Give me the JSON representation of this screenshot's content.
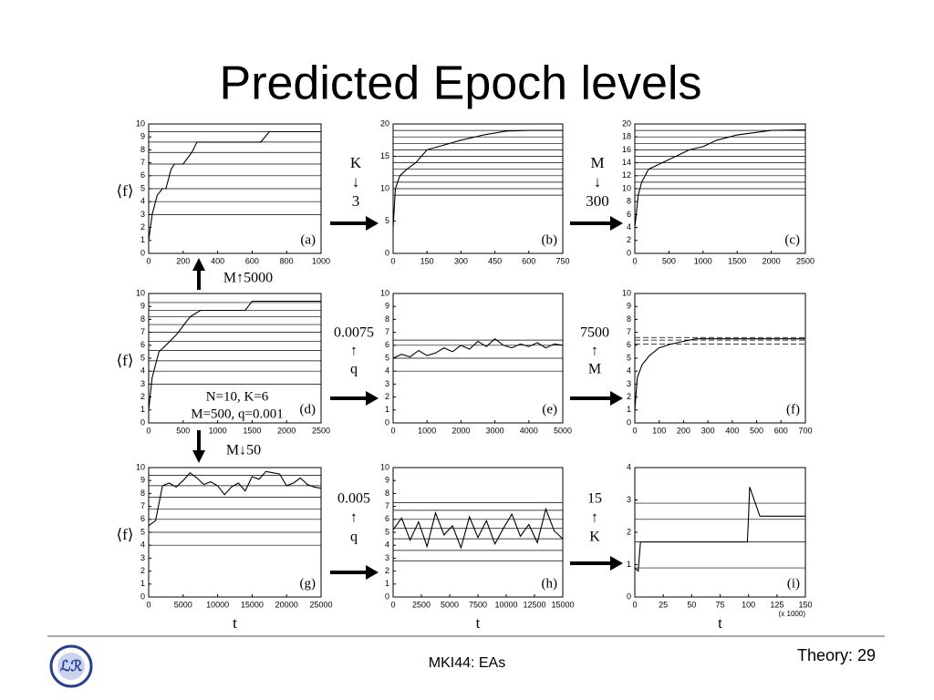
{
  "title": "Predicted Epoch levels",
  "footer": "MKI44: EAs",
  "slide_number": "Theory: 29",
  "annotations": [
    {
      "lines": [
        "K",
        "↓",
        "3"
      ]
    },
    {
      "lines": [
        "M",
        "↓",
        "300"
      ]
    },
    {
      "lines": [
        "M↑5000"
      ]
    },
    {
      "lines": [
        "0.0075",
        "↑",
        "q"
      ]
    },
    {
      "lines": [
        "7500",
        "↑",
        "M"
      ]
    },
    {
      "lines": [
        "M↓50"
      ]
    },
    {
      "lines": [
        "0.005",
        "↑",
        "q"
      ]
    },
    {
      "lines": [
        "15",
        "↑",
        "K"
      ]
    },
    {
      "lines": [
        "N=10, K=6",
        "M=500, q=0.001"
      ]
    }
  ],
  "chart_data": [
    {
      "type": "line",
      "label": "(a)",
      "y_label": "⟨f⟩",
      "color": "#000",
      "x": [
        0,
        20,
        50,
        80,
        100,
        130,
        150,
        200,
        250,
        280,
        300,
        400,
        500,
        650,
        700,
        1000
      ],
      "values": [
        1,
        3,
        4.5,
        5,
        5,
        6.5,
        6.9,
        6.9,
        7.8,
        8.6,
        8.6,
        8.6,
        8.6,
        8.6,
        9.4,
        9.4
      ],
      "levels": [
        3,
        4,
        5,
        6,
        6.9,
        7.8,
        8.6,
        9.4
      ],
      "xlim": [
        0,
        1000
      ],
      "xticks": [
        0,
        200,
        400,
        600,
        800,
        1000
      ],
      "ylim": [
        0,
        10
      ],
      "yticks": [
        0,
        1,
        2,
        3,
        4,
        5,
        6,
        7,
        8,
        9,
        10
      ]
    },
    {
      "type": "line",
      "label": "(b)",
      "color": "#000",
      "x": [
        0,
        10,
        30,
        60,
        100,
        150,
        200,
        300,
        400,
        500,
        600,
        750
      ],
      "values": [
        4,
        10,
        12,
        13,
        14,
        16,
        16.5,
        17.5,
        18.3,
        18.9,
        19,
        19
      ],
      "levels": [
        9,
        10,
        11,
        12,
        13,
        14,
        15,
        16,
        17,
        18,
        19
      ],
      "xlim": [
        0,
        750
      ],
      "xticks": [
        0,
        150,
        300,
        450,
        600,
        750
      ],
      "ylim": [
        0,
        20
      ],
      "yticks": [
        0,
        5,
        10,
        15,
        20
      ]
    },
    {
      "type": "line",
      "label": "(c)",
      "color": "#000",
      "x": [
        0,
        50,
        100,
        200,
        300,
        400,
        600,
        800,
        1000,
        1200,
        1500,
        2000,
        2500
      ],
      "values": [
        4,
        9,
        11,
        13,
        13.5,
        14,
        15,
        16,
        16.5,
        17.5,
        18.3,
        19,
        19.1
      ],
      "levels": [
        9,
        10,
        11,
        12,
        13,
        14,
        15,
        16,
        17,
        18,
        19
      ],
      "xlim": [
        0,
        2500
      ],
      "xticks": [
        0,
        500,
        1000,
        1500,
        2000,
        2500
      ],
      "ylim": [
        0,
        20
      ],
      "yticks": [
        0,
        2,
        4,
        6,
        8,
        10,
        12,
        14,
        16,
        18,
        20
      ]
    },
    {
      "type": "line",
      "label": "(d)",
      "y_label": "⟨f⟩",
      "color": "#000",
      "x": [
        0,
        50,
        150,
        250,
        400,
        500,
        600,
        750,
        1000,
        1400,
        1500,
        2500
      ],
      "values": [
        1,
        3.5,
        5.5,
        6,
        6.8,
        7.5,
        8.2,
        8.7,
        8.7,
        8.7,
        9.4,
        9.4
      ],
      "levels": [
        3,
        4,
        4.8,
        5.6,
        6.3,
        7,
        7.6,
        8.2,
        8.7,
        9.3
      ],
      "xlim": [
        0,
        2500
      ],
      "xticks": [
        0,
        500,
        1000,
        1500,
        2000,
        2500
      ],
      "ylim": [
        0,
        10
      ],
      "yticks": [
        0,
        1,
        2,
        3,
        4,
        5,
        6,
        7,
        8,
        9,
        10
      ]
    },
    {
      "type": "line",
      "label": "(e)",
      "color": "#000",
      "x": [
        0,
        250,
        500,
        750,
        1000,
        1250,
        1500,
        1750,
        2000,
        2250,
        2500,
        2750,
        3000,
        3250,
        3500,
        3750,
        4000,
        4250,
        4500,
        4750,
        5000
      ],
      "values": [
        5,
        5.3,
        5.1,
        5.6,
        5.2,
        5.4,
        5.8,
        5.5,
        6,
        5.7,
        6.3,
        5.9,
        6.5,
        6,
        5.8,
        6.1,
        5.9,
        6.2,
        5.8,
        6.1,
        6
      ],
      "levels": [
        4,
        5,
        6,
        6.4
      ],
      "xlim": [
        0,
        5000
      ],
      "xticks": [
        0,
        1000,
        2000,
        3000,
        4000,
        5000
      ],
      "ylim": [
        0,
        10
      ],
      "yticks": [
        0,
        1,
        2,
        3,
        4,
        5,
        6,
        7,
        8,
        9,
        10
      ]
    },
    {
      "type": "line",
      "label": "(f)",
      "color": "#000",
      "levels_dashed": true,
      "x": [
        0,
        10,
        30,
        60,
        100,
        150,
        200,
        250,
        300,
        400,
        500,
        600,
        700
      ],
      "values": [
        1,
        3.5,
        4.5,
        5.2,
        5.8,
        6.1,
        6.3,
        6.5,
        6.5,
        6.5,
        6.5,
        6.5,
        6.5
      ],
      "levels": [
        6.1,
        6.4,
        6.6
      ],
      "xlim": [
        0,
        700
      ],
      "xticks": [
        0,
        100,
        200,
        300,
        400,
        500,
        600,
        700
      ],
      "ylim": [
        0,
        10
      ],
      "yticks": [
        0,
        1,
        2,
        3,
        4,
        5,
        6,
        7,
        8,
        9,
        10
      ]
    },
    {
      "type": "line",
      "label": "(g)",
      "y_label": "⟨f⟩",
      "x_label": "t",
      "color": "#000",
      "x": [
        0,
        1000,
        2000,
        3000,
        4000,
        5000,
        6000,
        7000,
        8000,
        9000,
        10000,
        11000,
        12000,
        13000,
        14000,
        15000,
        16000,
        17000,
        18000,
        19000,
        20000,
        21000,
        22000,
        23000,
        24000,
        25000
      ],
      "values": [
        5.5,
        5.9,
        8.6,
        8.8,
        8.5,
        9,
        9.6,
        9.2,
        8.7,
        8.9,
        8.6,
        7.9,
        8.5,
        8.8,
        8.2,
        9.3,
        9.1,
        9.7,
        9.6,
        9.5,
        8.6,
        8.8,
        9.2,
        8.7,
        8.5,
        8.4
      ],
      "levels": [
        4,
        5,
        6,
        6.8,
        7.7,
        8.6,
        9.4
      ],
      "xlim": [
        0,
        25000
      ],
      "xticks": [
        0,
        5000,
        10000,
        15000,
        20000,
        25000
      ],
      "ylim": [
        0,
        10
      ],
      "yticks": [
        0,
        1,
        2,
        3,
        4,
        5,
        6,
        7,
        8,
        9,
        10
      ]
    },
    {
      "type": "line",
      "label": "(h)",
      "x_label": "t",
      "color": "#000",
      "x": [
        0,
        750,
        1500,
        2250,
        3000,
        3750,
        4500,
        5250,
        6000,
        6750,
        7500,
        8250,
        9000,
        9750,
        10500,
        11250,
        12000,
        12750,
        13500,
        14250,
        15000
      ],
      "values": [
        5.2,
        6.1,
        4.4,
        5.8,
        3.9,
        6.5,
        4.8,
        5.5,
        3.8,
        6.2,
        4.6,
        5.9,
        4.1,
        5.3,
        6.4,
        4.7,
        5.6,
        4.2,
        6.8,
        5.1,
        4.5
      ],
      "levels": [
        2.8,
        3.6,
        4.5,
        5.3,
        6,
        6.7,
        7.3
      ],
      "xlim": [
        0,
        15000
      ],
      "xticks": [
        0,
        2500,
        5000,
        7500,
        10000,
        12500,
        15000
      ],
      "ylim": [
        0,
        10
      ],
      "yticks": [
        0,
        1,
        2,
        3,
        4,
        5,
        6,
        7,
        8,
        9,
        10
      ]
    },
    {
      "type": "line",
      "label": "(i)",
      "x_label": "t",
      "x_note": "(x 1000)",
      "color": "#000",
      "x": [
        0,
        3,
        5,
        10,
        25,
        50,
        75,
        99,
        100,
        101,
        110,
        125,
        150
      ],
      "values": [
        0.9,
        0.8,
        1.7,
        1.7,
        1.7,
        1.7,
        1.7,
        1.7,
        2.5,
        3.4,
        2.5,
        2.5,
        2.5
      ],
      "levels": [
        0.9,
        1.7,
        2.4,
        2.9
      ],
      "xlim": [
        0,
        150
      ],
      "xticks": [
        0,
        25,
        50,
        75,
        100,
        125,
        150
      ],
      "ylim": [
        0,
        4
      ],
      "yticks": [
        0,
        1,
        2,
        3,
        4
      ]
    }
  ]
}
